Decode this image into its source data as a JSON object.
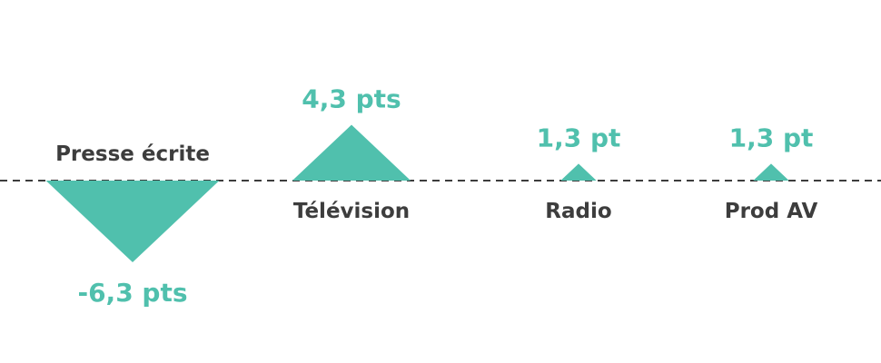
{
  "colors": {
    "accent": "#50c0ad",
    "category_text": "#3d3d3d",
    "baseline": "#3d3d3d"
  },
  "chart_data": {
    "type": "bar",
    "categories": [
      "Presse écrite",
      "Télévision",
      "Radio",
      "Prod AV"
    ],
    "values": [
      -6.3,
      4.3,
      1.3,
      1.3
    ],
    "value_labels": [
      "-6,3 pts",
      "4,3 pts",
      "1,3 pt",
      "1,3 pt"
    ],
    "unit": "pts",
    "baseline": 0,
    "grid": false,
    "legend": "none"
  }
}
